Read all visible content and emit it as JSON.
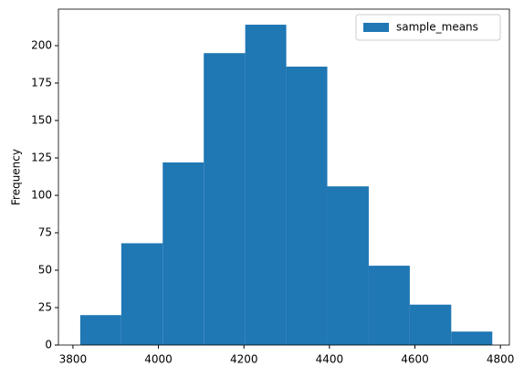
{
  "chart_data": {
    "type": "histogram",
    "bins": [
      3817,
      3913,
      4010,
      4106,
      4203,
      4299,
      4395,
      4492,
      4588,
      4685,
      4781
    ],
    "series": [
      {
        "name": "sample_means",
        "color": "#1f77b4",
        "values": [
          20,
          68,
          122,
          195,
          214,
          186,
          106,
          53,
          27,
          9
        ]
      }
    ],
    "y_label": "Frequency",
    "xlim": [
      3766,
      4821
    ],
    "xticks": [
      3800,
      4000,
      4200,
      4400,
      4600,
      4800
    ],
    "ylim": [
      0,
      224.4
    ],
    "yticks": [
      0,
      25,
      50,
      75,
      100,
      125,
      150,
      175,
      200
    ],
    "legend": "upper right",
    "grid": false
  }
}
